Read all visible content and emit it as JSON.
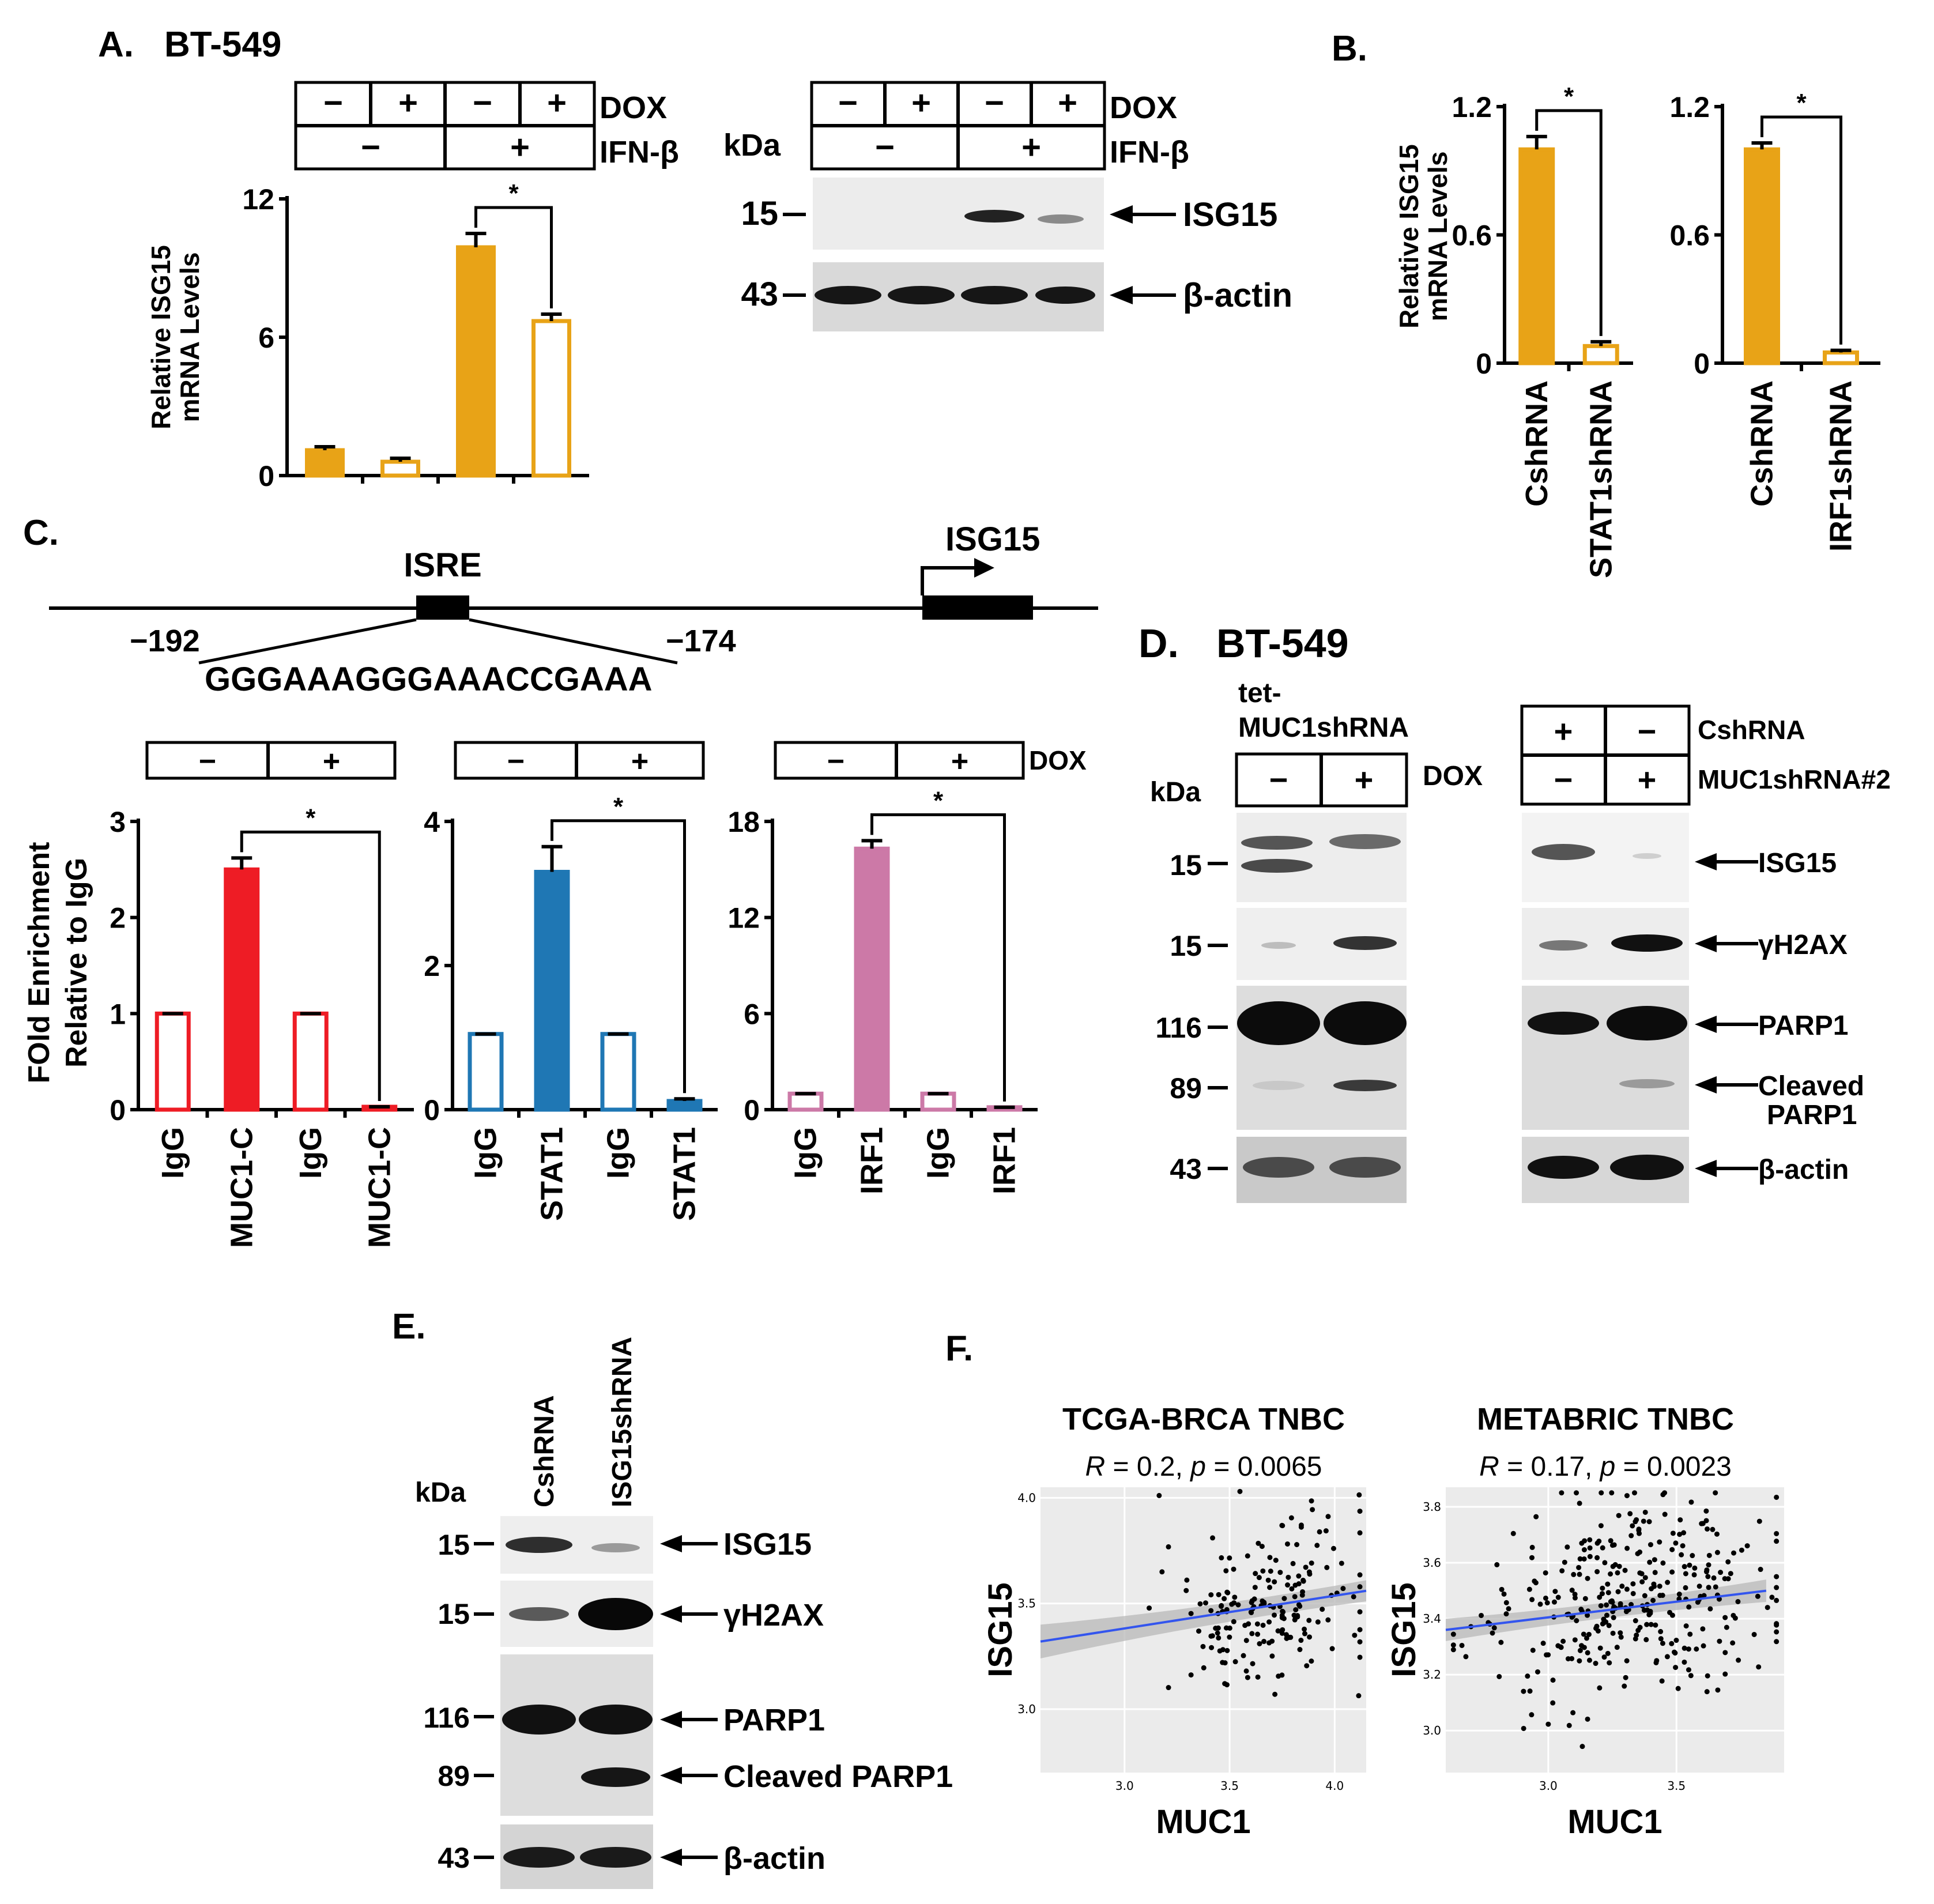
{
  "figure": {
    "panel_a": {
      "letter": "A.",
      "title": "BT-549"
    },
    "panel_b": {
      "letter": "B."
    },
    "panel_c": {
      "letter": "C."
    },
    "panel_d": {
      "letter": "D.",
      "title": "BT-549"
    },
    "panel_e": {
      "letter": "E."
    },
    "panel_f": {
      "letter": "F."
    }
  },
  "treatment": {
    "minus": "−",
    "plus": "+",
    "dox": "DOX",
    "ifn": "IFN-β",
    "cshrna": "CshRNA",
    "muc1shrna2": "MUC1shRNA#2",
    "tet_line1": "tet-",
    "tet_line2": "MUC1shRNA",
    "kda": "kDa"
  },
  "blot": {
    "isg15": "ISG15",
    "actin": "β-actin",
    "gh2ax": "γH2AX",
    "parp1": "PARP1",
    "cleaved1": "Cleaved",
    "cleaved2": "PARP1",
    "cleaved_full": "Cleaved PARP1",
    "mw_15": "15",
    "mw_43": "43",
    "mw_116": "116",
    "mw_89": "89"
  },
  "promoter": {
    "isre": "ISRE",
    "gene": "ISG15",
    "start": "−192",
    "end": "−174",
    "sequence": "GGGAAAGGGAAACCGAAA"
  },
  "lanes_e": [
    "CshRNA",
    "ISG15shRNA"
  ],
  "chart_data": [
    {
      "panel": "A",
      "type": "bar",
      "categories": [
        "DOX −, IFN-β −",
        "DOX +, IFN-β −",
        "DOX −, IFN-β +",
        "DOX +, IFN-β +"
      ],
      "values": [
        1.1,
        0.6,
        9.9,
        6.7
      ],
      "errors": [
        0.15,
        0.15,
        0.6,
        0.3
      ],
      "ylabel": "Relative ISG15 mRNA Levels",
      "ylim": [
        0,
        12
      ],
      "yticks": [
        "0",
        "6",
        "12"
      ],
      "color": "#e8a317",
      "filled": [
        true,
        false,
        true,
        false
      ],
      "significance": "*"
    },
    {
      "panel": "B1",
      "type": "bar",
      "categories": [
        "CshRNA",
        "STAT1shRNA"
      ],
      "values": [
        1.0,
        0.08
      ],
      "errors": [
        0.06,
        0.02
      ],
      "ylabel": "Relative ISG15 mRNA Levels",
      "ylim": [
        0,
        1.2
      ],
      "yticks": [
        "0",
        "0.6",
        "1.2"
      ],
      "color": "#e8a317",
      "filled": [
        true,
        false
      ],
      "significance": "*"
    },
    {
      "panel": "B2",
      "type": "bar",
      "categories": [
        "CshRNA",
        "IRF1shRNA"
      ],
      "values": [
        1.0,
        0.05
      ],
      "errors": [
        0.03,
        0.01
      ],
      "ylim": [
        0,
        1.2
      ],
      "yticks": [
        "0",
        "0.6",
        "1.2"
      ],
      "color": "#e8a317",
      "filled": [
        true,
        false
      ],
      "significance": "*"
    },
    {
      "panel": "C1",
      "type": "bar",
      "categories": [
        "IgG",
        "MUC1-C",
        "IgG",
        "MUC1-C"
      ],
      "values": [
        1.0,
        2.5,
        1.0,
        0.03
      ],
      "errors": [
        0.0,
        0.12,
        0.0,
        0.0
      ],
      "ylabel": "FOld Enrichment Relative to IgG",
      "ylim": [
        0,
        3
      ],
      "yticks": [
        "0",
        "1",
        "2",
        "3"
      ],
      "color": "#ee1c25",
      "filled": [
        false,
        true,
        false,
        true
      ],
      "significance": "*",
      "dox": [
        "−",
        "+"
      ]
    },
    {
      "panel": "C2",
      "type": "bar",
      "categories": [
        "IgG",
        "STAT1",
        "IgG",
        "STAT1"
      ],
      "values": [
        1.05,
        3.3,
        1.05,
        0.12
      ],
      "errors": [
        0.0,
        0.35,
        0.0,
        0.03
      ],
      "ylim": [
        0,
        4
      ],
      "yticks": [
        "0",
        "2",
        "4"
      ],
      "color": "#1f77b4",
      "filled": [
        false,
        true,
        false,
        true
      ],
      "significance": "*",
      "dox": [
        "−",
        "+"
      ]
    },
    {
      "panel": "C3",
      "type": "bar",
      "categories": [
        "IgG",
        "IRF1",
        "IgG",
        "IRF1"
      ],
      "values": [
        1.0,
        16.3,
        1.0,
        0.15
      ],
      "errors": [
        0.0,
        0.5,
        0.0,
        0.0
      ],
      "ylim": [
        0,
        18
      ],
      "yticks": [
        "0",
        "6",
        "12",
        "18"
      ],
      "color": "#cc79a7",
      "filled": [
        false,
        true,
        false,
        true
      ],
      "significance": "*",
      "dox": [
        "−",
        "+"
      ]
    },
    {
      "panel": "F1",
      "type": "scatter",
      "title": "TCGA-BRCA TNBC",
      "stat_r": "0.2",
      "stat_p": "0.0065",
      "xlabel": "MUC1",
      "ylabel": "ISG15",
      "xlim": [
        2.6,
        4.15
      ],
      "ylim": [
        2.7,
        4.05
      ],
      "xticks": [
        "3.0",
        "3.5",
        "4.0"
      ],
      "yticks": [
        "3.0",
        "3.5",
        "4.0"
      ],
      "fit": [
        [
          2.6,
          3.32
        ],
        [
          4.15,
          3.56
        ]
      ],
      "band": [
        0.08,
        0.03,
        0.05
      ],
      "n_points": 185,
      "x_center": 3.68,
      "x_sd": 0.25,
      "y_center": 3.48,
      "y_sd": 0.23,
      "seed": 7
    },
    {
      "panel": "F2",
      "type": "scatter",
      "title": "METABRIC TNBC",
      "stat_r": "0.17",
      "stat_p": "0.0023",
      "xlabel": "MUC1",
      "ylabel": "ISG15",
      "xlim": [
        2.6,
        3.92
      ],
      "ylim": [
        2.85,
        3.87
      ],
      "xticks": [
        "3.0",
        "3.5"
      ],
      "yticks": [
        "3.0",
        "3.2",
        "3.4",
        "3.6",
        "3.8"
      ],
      "fit": [
        [
          2.6,
          3.36
        ],
        [
          3.85,
          3.5
        ]
      ],
      "band": [
        0.04,
        0.015,
        0.04
      ],
      "n_points": 330,
      "x_center": 3.35,
      "x_sd": 0.27,
      "y_center": 3.42,
      "y_sd": 0.2,
      "seed": 19
    }
  ]
}
